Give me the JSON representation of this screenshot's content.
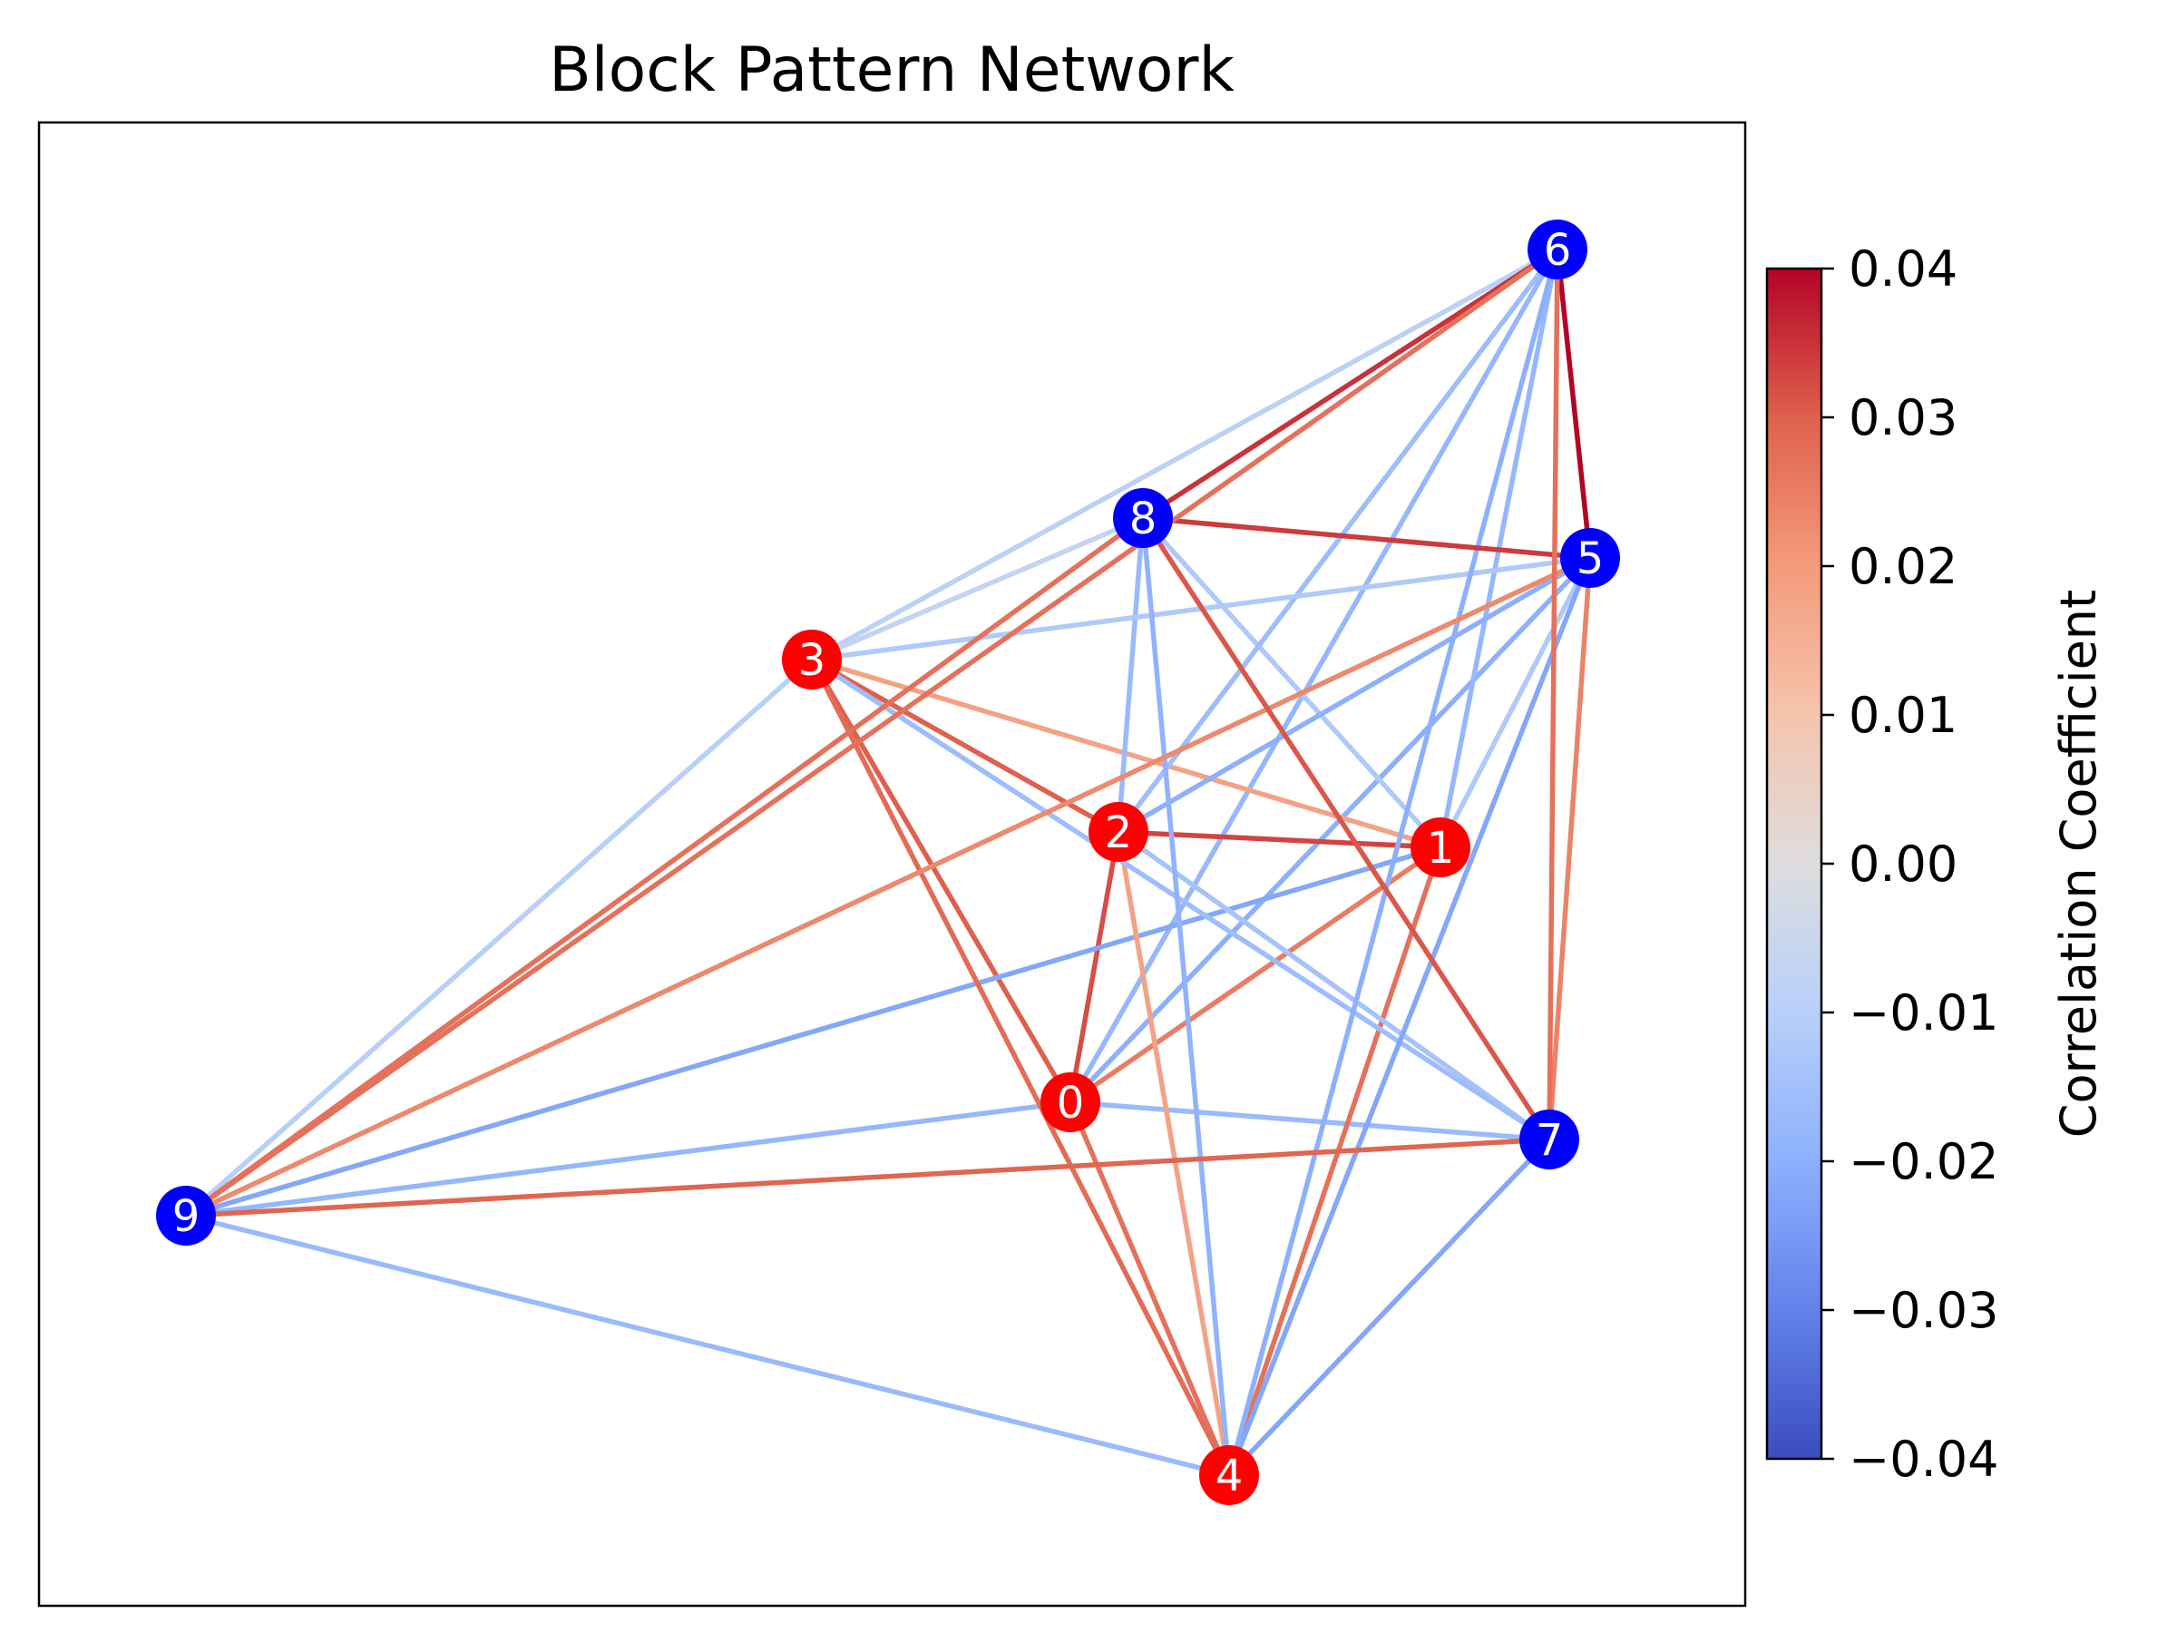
{
  "title": "Block Pattern Network",
  "colorbar": {
    "label": "Correlation Coefficient",
    "colormap": "coolwarm",
    "vmin": -0.04,
    "vmax": 0.04,
    "ticks": [
      {
        "value": 0.04,
        "label": "0.04"
      },
      {
        "value": 0.03,
        "label": "0.03"
      },
      {
        "value": 0.02,
        "label": "0.02"
      },
      {
        "value": 0.01,
        "label": "0.01"
      },
      {
        "value": 0.0,
        "label": "0.00"
      },
      {
        "value": -0.01,
        "label": "−0.01"
      },
      {
        "value": -0.02,
        "label": "−0.02"
      },
      {
        "value": -0.03,
        "label": "−0.03"
      },
      {
        "value": -0.04,
        "label": "−0.04"
      }
    ]
  },
  "colors": {
    "group_red": "#ff0000",
    "group_blue": "#0000ff"
  },
  "nodes": [
    {
      "id": "0",
      "group": "red"
    },
    {
      "id": "1",
      "group": "red"
    },
    {
      "id": "2",
      "group": "red"
    },
    {
      "id": "3",
      "group": "red"
    },
    {
      "id": "4",
      "group": "red"
    },
    {
      "id": "5",
      "group": "blue"
    },
    {
      "id": "6",
      "group": "blue"
    },
    {
      "id": "7",
      "group": "blue"
    },
    {
      "id": "8",
      "group": "blue"
    },
    {
      "id": "9",
      "group": "blue"
    }
  ],
  "edges": [
    {
      "source": "0",
      "target": "1",
      "weight": 0.025
    },
    {
      "source": "0",
      "target": "2",
      "weight": 0.032
    },
    {
      "source": "0",
      "target": "3",
      "weight": 0.03
    },
    {
      "source": "0",
      "target": "4",
      "weight": 0.027
    },
    {
      "source": "0",
      "target": "5",
      "weight": -0.02
    },
    {
      "source": "0",
      "target": "6",
      "weight": -0.018
    },
    {
      "source": "0",
      "target": "7",
      "weight": -0.017
    },
    {
      "source": "0",
      "target": "9",
      "weight": -0.018
    },
    {
      "source": "1",
      "target": "2",
      "weight": 0.033
    },
    {
      "source": "1",
      "target": "3",
      "weight": 0.018
    },
    {
      "source": "1",
      "target": "4",
      "weight": 0.027
    },
    {
      "source": "1",
      "target": "5",
      "weight": -0.012
    },
    {
      "source": "1",
      "target": "6",
      "weight": -0.018
    },
    {
      "source": "1",
      "target": "8",
      "weight": -0.012
    },
    {
      "source": "1",
      "target": "9",
      "weight": -0.022
    },
    {
      "source": "2",
      "target": "3",
      "weight": 0.03
    },
    {
      "source": "2",
      "target": "4",
      "weight": 0.018
    },
    {
      "source": "2",
      "target": "5",
      "weight": -0.02
    },
    {
      "source": "2",
      "target": "6",
      "weight": -0.016
    },
    {
      "source": "2",
      "target": "7",
      "weight": -0.014
    },
    {
      "source": "2",
      "target": "8",
      "weight": -0.017
    },
    {
      "source": "3",
      "target": "4",
      "weight": 0.028
    },
    {
      "source": "3",
      "target": "5",
      "weight": -0.012
    },
    {
      "source": "3",
      "target": "6",
      "weight": -0.009
    },
    {
      "source": "3",
      "target": "7",
      "weight": -0.016
    },
    {
      "source": "3",
      "target": "8",
      "weight": -0.007
    },
    {
      "source": "3",
      "target": "9",
      "weight": -0.01
    },
    {
      "source": "4",
      "target": "5",
      "weight": -0.022
    },
    {
      "source": "4",
      "target": "6",
      "weight": -0.02
    },
    {
      "source": "4",
      "target": "7",
      "weight": -0.022
    },
    {
      "source": "4",
      "target": "8",
      "weight": -0.019
    },
    {
      "source": "4",
      "target": "9",
      "weight": -0.017
    },
    {
      "source": "5",
      "target": "6",
      "weight": 0.04
    },
    {
      "source": "5",
      "target": "7",
      "weight": 0.024
    },
    {
      "source": "5",
      "target": "8",
      "weight": 0.034
    },
    {
      "source": "5",
      "target": "9",
      "weight": 0.023
    },
    {
      "source": "6",
      "target": "7",
      "weight": 0.027
    },
    {
      "source": "6",
      "target": "8",
      "weight": 0.035
    },
    {
      "source": "6",
      "target": "9",
      "weight": 0.027
    },
    {
      "source": "7",
      "target": "8",
      "weight": 0.031
    },
    {
      "source": "7",
      "target": "9",
      "weight": 0.029
    },
    {
      "source": "8",
      "target": "9",
      "weight": 0.027
    }
  ]
}
